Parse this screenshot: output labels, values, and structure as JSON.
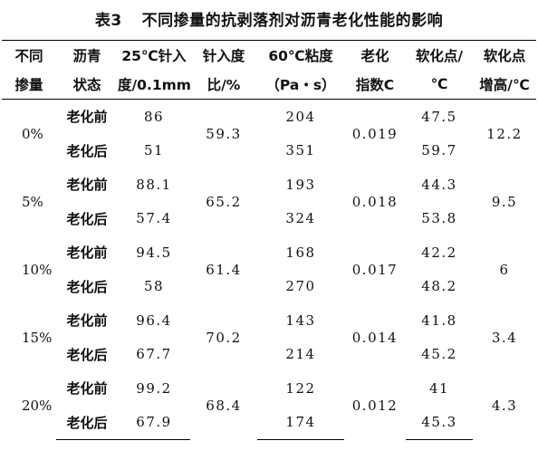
{
  "title": {
    "number": "表3",
    "text": "不同掺量的抗剥落剂对沥青老化性能的影响"
  },
  "headers": [
    [
      "不同",
      "掺量"
    ],
    [
      "沥青",
      "状态"
    ],
    [
      "25℃针入",
      "度/0.1mm"
    ],
    [
      "针入度",
      "比/%"
    ],
    [
      "60℃粘度",
      "（Pa・s）"
    ],
    [
      "老化",
      "指数C"
    ],
    [
      "软化点/",
      "℃"
    ],
    [
      "软化点",
      "增高/℃"
    ]
  ],
  "groups": [
    {
      "dosage": "0%",
      "ratio": "59.3",
      "index": "0.019",
      "increase": "12.2",
      "rows": [
        {
          "state": "老化前",
          "pen": "86",
          "visc": "204",
          "soft": "47.5"
        },
        {
          "state": "老化后",
          "pen": "51",
          "visc": "351",
          "soft": "59.7"
        }
      ]
    },
    {
      "dosage": "5%",
      "ratio": "65.2",
      "index": "0.018",
      "increase": "9.5",
      "rows": [
        {
          "state": "老化前",
          "pen": "88.1",
          "visc": "193",
          "soft": "44.3"
        },
        {
          "state": "老化后",
          "pen": "57.4",
          "visc": "324",
          "soft": "53.8"
        }
      ]
    },
    {
      "dosage": "10%",
      "ratio": "61.4",
      "index": "0.017",
      "increase": "6",
      "rows": [
        {
          "state": "老化前",
          "pen": "94.5",
          "visc": "168",
          "soft": "42.2"
        },
        {
          "state": "老化后",
          "pen": "58",
          "visc": "270",
          "soft": "48.2"
        }
      ]
    },
    {
      "dosage": "15%",
      "ratio": "70.2",
      "index": "0.014",
      "increase": "3.4",
      "rows": [
        {
          "state": "老化前",
          "pen": "96.4",
          "visc": "143",
          "soft": "41.8"
        },
        {
          "state": "老化后",
          "pen": "67.7",
          "visc": "214",
          "soft": "45.2"
        }
      ]
    },
    {
      "dosage": "20%",
      "ratio": "68.4",
      "index": "0.012",
      "increase": "4.3",
      "rows": [
        {
          "state": "老化前",
          "pen": "99.2",
          "visc": "122",
          "soft": "41"
        },
        {
          "state": "老化后",
          "pen": "67.9",
          "visc": "174",
          "soft": "45.3"
        }
      ]
    }
  ]
}
